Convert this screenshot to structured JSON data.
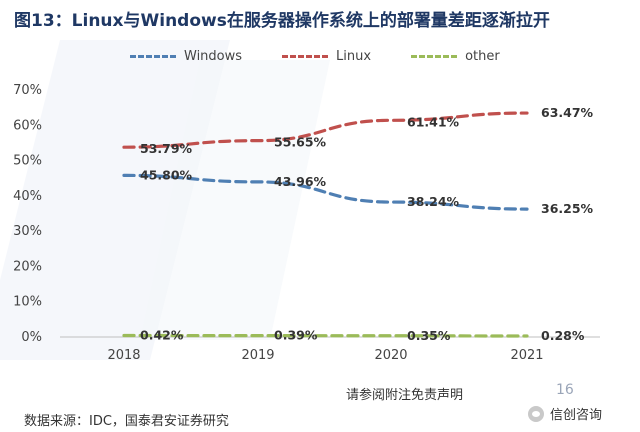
{
  "title": "图13：Linux与Windows在服务器操作系统上的部署量差距逐渐拉开",
  "chart_data": {
    "type": "line",
    "title": "图13：Linux与Windows在服务器操作系统上的部署量差距逐渐拉开",
    "xlabel": "",
    "ylabel": "",
    "x": [
      "2018",
      "2019",
      "2020",
      "2021"
    ],
    "y_ticks": [
      "0%",
      "10%",
      "20%",
      "30%",
      "40%",
      "50%",
      "60%",
      "70%"
    ],
    "ylim": [
      0,
      70
    ],
    "grid": false,
    "legend_position": "top",
    "series": [
      {
        "name": "Windows",
        "values": [
          45.8,
          43.96,
          38.24,
          36.25
        ],
        "labels": [
          "45.80%",
          "43.96%",
          "38.24%",
          "36.25%"
        ],
        "color": "#4f7fb3"
      },
      {
        "name": "Linux",
        "values": [
          53.79,
          55.65,
          61.41,
          63.47
        ],
        "labels": [
          "53.79%",
          "55.65%",
          "61.41%",
          "63.47%"
        ],
        "color": "#c0504d"
      },
      {
        "name": "other",
        "values": [
          0.42,
          0.39,
          0.35,
          0.28
        ],
        "labels": [
          "0.42%",
          "0.39%",
          "0.35%",
          "0.28%"
        ],
        "color": "#9bbb59"
      }
    ]
  },
  "footer": {
    "disclaimer": "请参阅附注免责声明",
    "page_number": "16",
    "source": "数据来源：IDC，国泰君安证券研究",
    "wechat_name": "信创咨询",
    "wechat_icon": "wechat-icon"
  }
}
